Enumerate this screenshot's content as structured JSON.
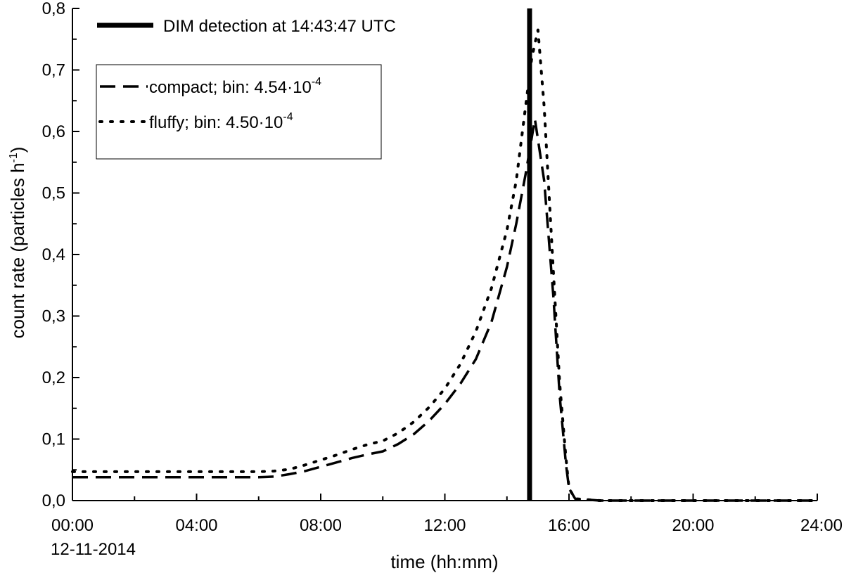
{
  "chart_data": {
    "type": "line",
    "title": "",
    "xlabel": "time (hh:mm)",
    "ylabel_main": "count rate (particles h",
    "ylabel_sup": "-1",
    "ylabel_close": ")",
    "date_label": "12-11-2014",
    "xlim": [
      0,
      24
    ],
    "ylim": [
      0,
      0.8
    ],
    "x_ticks": [
      {
        "value": 0,
        "label": "00:00"
      },
      {
        "value": 4,
        "label": "04:00"
      },
      {
        "value": 8,
        "label": "08:00"
      },
      {
        "value": 12,
        "label": "12:00"
      },
      {
        "value": 16,
        "label": "16:00"
      },
      {
        "value": 20,
        "label": "20:00"
      },
      {
        "value": 24,
        "label": "24:00"
      }
    ],
    "y_ticks": [
      {
        "value": 0.0,
        "label": "0,0"
      },
      {
        "value": 0.1,
        "label": "0,1"
      },
      {
        "value": 0.2,
        "label": "0,2"
      },
      {
        "value": 0.3,
        "label": "0,3"
      },
      {
        "value": 0.4,
        "label": "0,4"
      },
      {
        "value": 0.5,
        "label": "0,5"
      },
      {
        "value": 0.6,
        "label": "0,6"
      },
      {
        "value": 0.7,
        "label": "0,7"
      },
      {
        "value": 0.8,
        "label": "0,8"
      }
    ],
    "grid": false,
    "legend_placement": "top-left",
    "detection": {
      "label": "DIM detection at 14:43:47 UTC",
      "x": 14.73
    },
    "series": [
      {
        "name": "compact",
        "legend_main": "compact; bin: 4.54·10",
        "legend_sup": "-4",
        "style": "dashed",
        "x": [
          0,
          1,
          2,
          3,
          4,
          5,
          6,
          6.5,
          7,
          7.5,
          8,
          8.5,
          9,
          9.5,
          10,
          10.5,
          11,
          11.5,
          12,
          12.5,
          13,
          13.5,
          14,
          14.3,
          14.6,
          14.9,
          15.2,
          15.5,
          15.7,
          15.9,
          16.0,
          16.2,
          17,
          18,
          20,
          22,
          24
        ],
        "values": [
          0.038,
          0.038,
          0.038,
          0.038,
          0.038,
          0.038,
          0.038,
          0.039,
          0.043,
          0.048,
          0.055,
          0.062,
          0.069,
          0.075,
          0.08,
          0.092,
          0.108,
          0.13,
          0.157,
          0.19,
          0.23,
          0.29,
          0.38,
          0.45,
          0.53,
          0.62,
          0.52,
          0.33,
          0.17,
          0.06,
          0.02,
          0.003,
          0.0,
          0.0,
          0.0,
          0.0,
          0.0
        ]
      },
      {
        "name": "fluffy",
        "legend_main": "fluffy; bin: 4.50·10",
        "legend_sup": "-4",
        "style": "dotted",
        "x": [
          0,
          1,
          2,
          3,
          4,
          5,
          6,
          6.5,
          7,
          7.5,
          8,
          8.5,
          9,
          9.5,
          10,
          10.5,
          11,
          11.5,
          12,
          12.5,
          13,
          13.5,
          14,
          14.3,
          14.6,
          14.8,
          15.0,
          15.2,
          15.5,
          15.7,
          15.9,
          16.0,
          16.2,
          17,
          18,
          20,
          22,
          24
        ],
        "values": [
          0.047,
          0.047,
          0.047,
          0.047,
          0.047,
          0.047,
          0.047,
          0.048,
          0.051,
          0.058,
          0.066,
          0.074,
          0.083,
          0.091,
          0.097,
          0.11,
          0.128,
          0.152,
          0.182,
          0.222,
          0.275,
          0.345,
          0.44,
          0.52,
          0.64,
          0.72,
          0.765,
          0.64,
          0.37,
          0.19,
          0.07,
          0.02,
          0.003,
          0.0,
          0.0,
          0.0,
          0.0,
          0.0
        ]
      }
    ]
  }
}
